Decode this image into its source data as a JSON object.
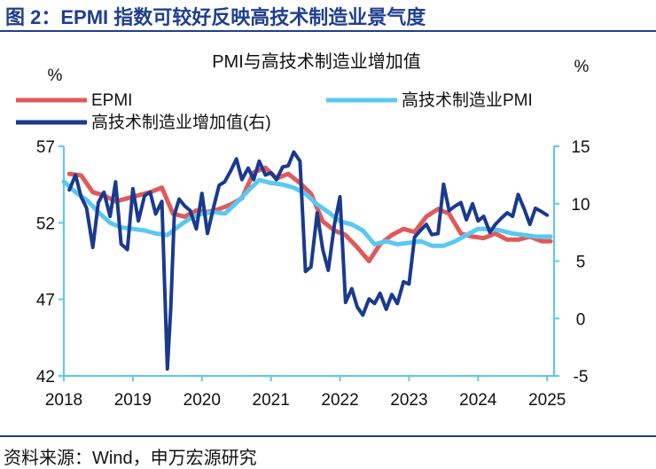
{
  "figure": {
    "title": "图 2：EPMI 指数可较好反映高技术制造业景气度",
    "source": "资料来源：Wind，申万宏源研究"
  },
  "colors": {
    "epmi": "#e05a5a",
    "hightech_pmi": "#5bc8f0",
    "hightech_va": "#1a3a8f",
    "axis": "#5bc8f0",
    "title_blue": "#1f3f8f"
  },
  "chart_data": {
    "type": "line",
    "title": "PMI与高技术制造业增加值",
    "left_axis": {
      "unit": "%",
      "ylim": [
        42,
        57
      ],
      "ticks": [
        42,
        47,
        52,
        57
      ]
    },
    "right_axis": {
      "unit": "%",
      "ylim": [
        -5,
        15
      ],
      "ticks": [
        -5,
        0,
        5,
        10,
        15
      ]
    },
    "x_axis": {
      "ticks": [
        "2018",
        "2019",
        "2020",
        "2021",
        "2022",
        "2023",
        "2024",
        "2025"
      ],
      "range": [
        2018,
        2025.1
      ]
    },
    "legend": [
      "EPMI",
      "高技术制造业PMI",
      "高技术制造业增加值(右)"
    ],
    "series": [
      {
        "name": "EPMI",
        "axis": "left",
        "x": [
          2018.08,
          2018.25,
          2018.42,
          2018.58,
          2018.75,
          2018.92,
          2019.08,
          2019.25,
          2019.42,
          2019.58,
          2019.75,
          2019.92,
          2020.08,
          2020.25,
          2020.42,
          2020.58,
          2020.75,
          2020.92,
          2021.08,
          2021.25,
          2021.42,
          2021.58,
          2021.75,
          2021.92,
          2022.08,
          2022.25,
          2022.42,
          2022.58,
          2022.75,
          2022.92,
          2023.08,
          2023.25,
          2023.42,
          2023.58,
          2023.75,
          2023.92,
          2024.08,
          2024.25,
          2024.42,
          2024.58,
          2024.75,
          2024.92,
          2025.05
        ],
        "values": [
          55.2,
          55.1,
          54.0,
          53.8,
          53.4,
          53.6,
          53.8,
          54.0,
          54.3,
          52.6,
          52.4,
          52.8,
          52.7,
          52.9,
          53.2,
          53.6,
          55.3,
          55.6,
          54.9,
          55.2,
          54.6,
          53.9,
          52.1,
          51.5,
          51.2,
          50.4,
          49.5,
          50.6,
          51.2,
          51.6,
          51.4,
          52.4,
          52.9,
          52.6,
          51.3,
          51.1,
          51.0,
          51.3,
          50.9,
          50.9,
          51.1,
          50.8,
          50.8
        ]
      },
      {
        "name": "高技术制造业PMI",
        "axis": "left",
        "x": [
          2018.0,
          2018.17,
          2018.33,
          2018.5,
          2018.67,
          2018.83,
          2019.0,
          2019.17,
          2019.33,
          2019.5,
          2019.67,
          2019.83,
          2020.0,
          2020.17,
          2020.33,
          2020.5,
          2020.67,
          2020.83,
          2021.0,
          2021.17,
          2021.33,
          2021.5,
          2021.67,
          2021.83,
          2022.0,
          2022.17,
          2022.33,
          2022.5,
          2022.67,
          2022.83,
          2023.0,
          2023.17,
          2023.33,
          2023.5,
          2023.67,
          2023.83,
          2024.0,
          2024.17,
          2024.33,
          2024.5,
          2024.67,
          2024.83,
          2025.05
        ],
        "values": [
          54.7,
          54.0,
          53.5,
          52.7,
          52.0,
          51.7,
          51.6,
          51.5,
          51.3,
          51.2,
          51.8,
          52.3,
          52.6,
          52.7,
          52.6,
          53.3,
          54.1,
          54.8,
          54.6,
          54.5,
          54.3,
          53.9,
          53.2,
          52.7,
          52.1,
          51.9,
          51.5,
          50.6,
          50.8,
          50.6,
          50.7,
          50.8,
          50.5,
          50.5,
          50.8,
          51.2,
          51.6,
          51.6,
          51.5,
          51.3,
          51.2,
          51.1,
          51.1
        ]
      },
      {
        "name": "高技术制造业增加值(右)",
        "axis": "right",
        "x": [
          2018.08,
          2018.17,
          2018.25,
          2018.33,
          2018.42,
          2018.5,
          2018.58,
          2018.67,
          2018.75,
          2018.83,
          2018.92,
          2019.0,
          2019.08,
          2019.17,
          2019.25,
          2019.33,
          2019.42,
          2019.5,
          2019.55,
          2019.6,
          2019.67,
          2019.75,
          2019.83,
          2019.92,
          2020.0,
          2020.08,
          2020.17,
          2020.25,
          2020.33,
          2020.42,
          2020.5,
          2020.58,
          2020.67,
          2020.75,
          2020.83,
          2020.92,
          2021.0,
          2021.08,
          2021.17,
          2021.25,
          2021.33,
          2021.42,
          2021.5,
          2021.58,
          2021.67,
          2021.75,
          2021.83,
          2021.92,
          2022.0,
          2022.08,
          2022.17,
          2022.25,
          2022.33,
          2022.42,
          2022.5,
          2022.58,
          2022.67,
          2022.75,
          2022.83,
          2022.92,
          2023.0,
          2023.08,
          2023.17,
          2023.25,
          2023.33,
          2023.42,
          2023.5,
          2023.58,
          2023.67,
          2023.75,
          2023.83,
          2023.92,
          2024.0,
          2024.08,
          2024.17,
          2024.25,
          2024.33,
          2024.42,
          2024.5,
          2024.58,
          2024.67,
          2024.75,
          2024.83,
          2024.92,
          2025.0
        ],
        "values": [
          11.2,
          12.5,
          10.6,
          9.6,
          6.2,
          10.1,
          11.0,
          8.9,
          11.9,
          6.5,
          6.0,
          11.3,
          8.5,
          10.7,
          11.0,
          9.1,
          10.2,
          -4.4,
          1.0,
          9.0,
          10.4,
          9.8,
          9.4,
          7.8,
          10.9,
          7.4,
          9.7,
          11.6,
          11.9,
          12.9,
          13.9,
          12.1,
          13.1,
          12.1,
          13.7,
          12.5,
          12.7,
          12.1,
          13.2,
          13.3,
          14.5,
          13.7,
          4.1,
          4.5,
          9.2,
          6.0,
          4.2,
          8.2,
          10.6,
          1.4,
          2.6,
          1.0,
          0.3,
          1.7,
          1.3,
          2.2,
          0.8,
          2.1,
          1.3,
          3.2,
          3.0,
          7.1,
          7.7,
          8.2,
          7.3,
          7.4,
          11.7,
          9.4,
          9.8,
          10.1,
          8.6,
          10.0,
          8.5,
          8.9,
          7.5,
          8.2,
          8.7,
          9.2,
          8.9,
          10.8,
          9.5,
          8.2,
          9.6,
          9.3,
          9.0
        ]
      }
    ]
  }
}
